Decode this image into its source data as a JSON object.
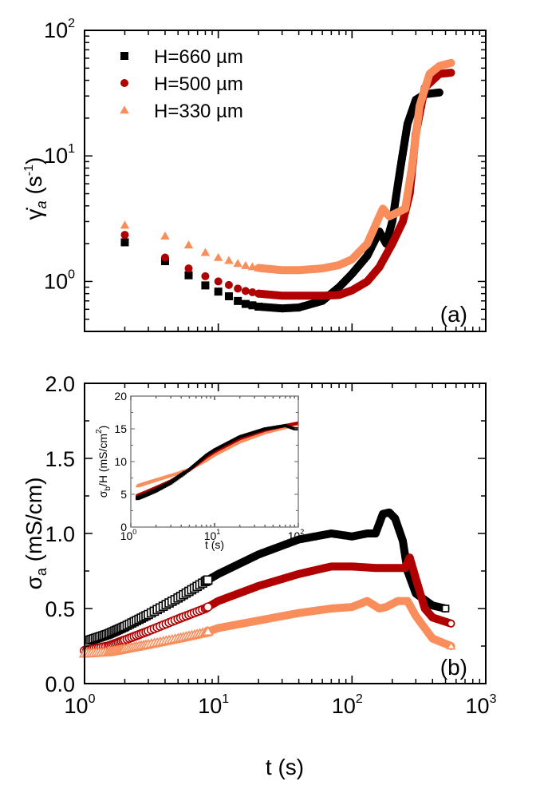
{
  "chart_data": [
    {
      "panel": "a",
      "type": "scatter",
      "title": "",
      "xlabel": "t (s)",
      "ylabel": "γ̇_a (s⁻¹)",
      "xscale": "log",
      "yscale": "log",
      "xlim": [
        1,
        1000
      ],
      "ylim": [
        0.4,
        100
      ],
      "x_tick_labels": [],
      "y_tick_labels": [
        "10^0",
        "10^1",
        "10^2"
      ],
      "grid": false,
      "legend_position": "upper left",
      "panel_label": "(a)",
      "series": [
        {
          "name": "H=660 µm",
          "color": "#000000",
          "marker": "square-filled",
          "x": [
            2,
            4,
            6,
            8,
            10,
            15,
            20,
            30,
            40,
            60,
            80,
            100,
            130,
            160,
            180,
            200,
            230,
            260,
            300,
            350,
            450
          ],
          "y": [
            2.05,
            1.45,
            1.12,
            0.93,
            0.83,
            0.67,
            0.63,
            0.61,
            0.62,
            0.7,
            0.9,
            1.15,
            1.6,
            2.5,
            2.0,
            3.0,
            8.0,
            18.0,
            28.0,
            31.0,
            32.0
          ]
        },
        {
          "name": "H=500 µm",
          "color": "#b00000",
          "marker": "circle-filled",
          "x": [
            2,
            4,
            6,
            8,
            10,
            15,
            20,
            30,
            40,
            60,
            80,
            100,
            130,
            160,
            200,
            240,
            270,
            300,
            350,
            450,
            550
          ],
          "y": [
            2.35,
            1.55,
            1.27,
            1.1,
            1.0,
            0.85,
            0.8,
            0.77,
            0.77,
            0.77,
            0.78,
            0.85,
            1.0,
            1.3,
            2.0,
            3.0,
            5.0,
            15.0,
            35.0,
            45.0,
            46.0
          ]
        },
        {
          "name": "H=330 µm",
          "color": "#f98e5c",
          "marker": "triangle-filled",
          "x": [
            2,
            4,
            6,
            8,
            10,
            15,
            20,
            30,
            40,
            60,
            80,
            100,
            130,
            170,
            190,
            250,
            280,
            320,
            380,
            450,
            550
          ],
          "y": [
            2.8,
            2.3,
            1.95,
            1.7,
            1.55,
            1.35,
            1.28,
            1.23,
            1.23,
            1.27,
            1.35,
            1.5,
            2.0,
            3.8,
            3.3,
            3.8,
            8.0,
            25.0,
            45.0,
            52.0,
            55.0
          ]
        }
      ]
    },
    {
      "panel": "b",
      "type": "scatter",
      "title": "",
      "xlabel": "t (s)",
      "ylabel": "σ_a (mS/cm)",
      "xscale": "log",
      "yscale": "linear",
      "xlim": [
        1,
        1000
      ],
      "ylim": [
        0.0,
        2.0
      ],
      "x_tick_labels": [
        "10^0",
        "10^1",
        "10^2",
        "10^3"
      ],
      "y_tick_labels": [
        "0.0",
        "0.5",
        "1.0",
        "1.5",
        "2.0"
      ],
      "grid": false,
      "panel_label": "(b)",
      "series": [
        {
          "name": "H=660 µm",
          "color": "#000000",
          "marker": "square-open",
          "x": [
            1.1,
            1.5,
            2,
            3,
            5,
            8,
            10,
            20,
            40,
            70,
            100,
            130,
            150,
            170,
            190,
            210,
            240,
            260,
            300,
            400,
            500
          ],
          "y": [
            0.29,
            0.33,
            0.38,
            0.46,
            0.57,
            0.68,
            0.73,
            0.86,
            0.96,
            1.0,
            0.98,
            1.0,
            1.0,
            1.13,
            1.14,
            1.1,
            0.95,
            0.75,
            0.6,
            0.52,
            0.5
          ]
        },
        {
          "name": "H=500 µm",
          "color": "#b00000",
          "marker": "circle-open",
          "x": [
            1.0,
            1.5,
            2,
            3,
            5,
            8,
            10,
            20,
            40,
            70,
            100,
            150,
            200,
            250,
            270,
            300,
            350,
            400,
            550
          ],
          "y": [
            0.22,
            0.25,
            0.29,
            0.35,
            0.43,
            0.5,
            0.55,
            0.65,
            0.73,
            0.78,
            0.78,
            0.77,
            0.77,
            0.77,
            0.84,
            0.7,
            0.5,
            0.44,
            0.4
          ]
        },
        {
          "name": "H=330 µm",
          "color": "#f98e5c",
          "marker": "triangle-open",
          "x": [
            1.0,
            1.5,
            2,
            3,
            5,
            8,
            10,
            20,
            40,
            70,
            100,
            130,
            160,
            180,
            220,
            260,
            300,
            400,
            550
          ],
          "y": [
            0.2,
            0.21,
            0.23,
            0.26,
            0.3,
            0.34,
            0.37,
            0.42,
            0.47,
            0.5,
            0.51,
            0.55,
            0.5,
            0.51,
            0.55,
            0.55,
            0.45,
            0.3,
            0.25
          ]
        }
      ],
      "inset": {
        "type": "scatter",
        "xlabel": "t (s)",
        "ylabel": "σ_b/H (mS/cm²)",
        "xscale": "log",
        "yscale": "linear",
        "xlim": [
          1,
          100
        ],
        "ylim": [
          0,
          20
        ],
        "x_tick_labels": [
          "10^0",
          "10^1",
          "10^2"
        ],
        "y_tick_labels": [
          "0",
          "5",
          "10",
          "15",
          "20"
        ],
        "series": [
          {
            "name": "H=660 µm",
            "color": "#000000",
            "x": [
              1.2,
              1.5,
              2,
              3,
              5,
              8,
              10,
              20,
              40,
              70,
              90,
              100
            ],
            "y": [
              4.4,
              4.9,
              5.6,
              6.8,
              8.8,
              11.0,
              11.8,
              13.8,
              15.0,
              15.5,
              15.0,
              15.0
            ]
          },
          {
            "name": "H=500 µm",
            "color": "#b00000",
            "x": [
              1.2,
              1.5,
              2,
              3,
              5,
              8,
              10,
              20,
              40,
              70,
              100
            ],
            "y": [
              4.8,
              5.3,
              6.0,
              7.0,
              8.7,
              10.7,
              11.5,
              13.5,
              14.8,
              15.5,
              15.9
            ]
          },
          {
            "name": "H=330 µm",
            "color": "#f98e5c",
            "x": [
              1.2,
              1.5,
              2,
              3,
              5,
              8,
              10,
              20,
              40,
              70,
              100
            ],
            "y": [
              6.3,
              6.7,
              7.2,
              7.9,
              8.8,
              10.2,
              11.0,
              13.0,
              14.4,
              15.2,
              15.7
            ]
          }
        ]
      }
    }
  ],
  "panel_a": {
    "y_ticks": [
      {
        "label": "10",
        "exp": "2",
        "value": 100
      },
      {
        "label": "10",
        "exp": "1",
        "value": 10
      },
      {
        "label": "10",
        "exp": "0",
        "value": 1
      }
    ],
    "ylabel_main": "γ̇",
    "ylabel_sub": "a",
    "ylabel_unit": " (s",
    "ylabel_unit_exp": "-1",
    "ylabel_close": ")",
    "panel_label": "(a)",
    "legend": [
      {
        "label": "H=660  µm",
        "color": "#000000",
        "marker": "square"
      },
      {
        "label": "H=500  µm",
        "color": "#b00000",
        "marker": "circle"
      },
      {
        "label": "H=330  µm",
        "color": "#f98e5c",
        "marker": "triangle"
      }
    ]
  },
  "panel_b": {
    "y_ticks": [
      "0.0",
      "0.5",
      "1.0",
      "1.5",
      "2.0"
    ],
    "x_ticks": [
      {
        "label": "10",
        "exp": "0"
      },
      {
        "label": "10",
        "exp": "1"
      },
      {
        "label": "10",
        "exp": "2"
      },
      {
        "label": "10",
        "exp": "3"
      }
    ],
    "ylabel_main": "σ",
    "ylabel_sub": "a",
    "ylabel_unit": " (mS/cm)",
    "xlabel": "t (s)",
    "panel_label": "(b)"
  },
  "inset": {
    "y_ticks": [
      "0",
      "5",
      "10",
      "15",
      "20"
    ],
    "x_ticks": [
      {
        "label": "10",
        "exp": "0"
      },
      {
        "label": "10",
        "exp": "1"
      },
      {
        "label": "10",
        "exp": "2"
      }
    ],
    "ylabel_main": "σ",
    "ylabel_sub": "b",
    "ylabel_unit": "/H (mS/cm",
    "ylabel_unit_exp": "2",
    "ylabel_close": ")",
    "xlabel": "t (s)"
  }
}
